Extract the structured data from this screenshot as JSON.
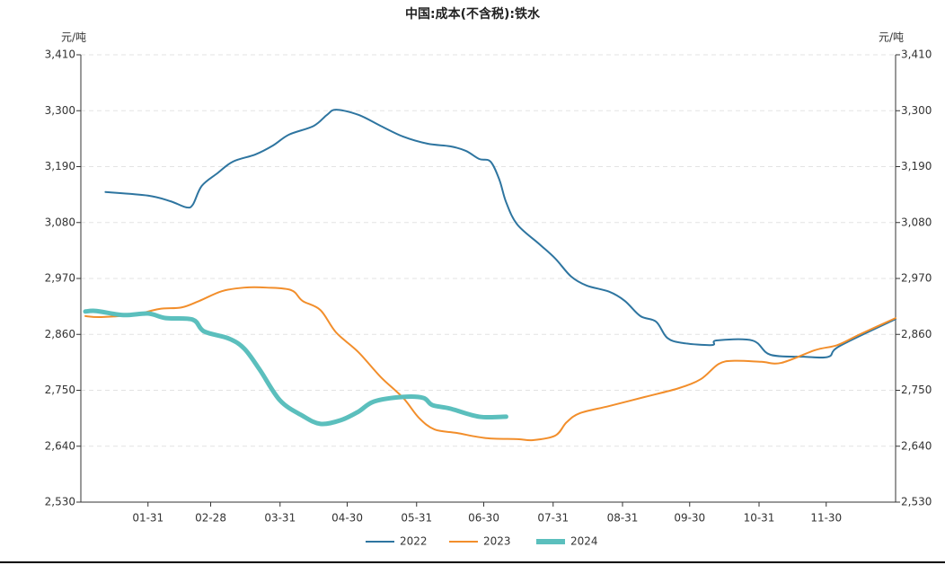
{
  "chart_data": {
    "type": "line",
    "title": "中国:成本(不含税):铁水",
    "y_label": "元/吨",
    "y2_label": "元/吨",
    "xlim": [
      "01-01",
      "12-31"
    ],
    "xticks": [
      "01-31",
      "02-28",
      "03-31",
      "04-30",
      "05-31",
      "06-30",
      "07-31",
      "08-31",
      "09-30",
      "10-31",
      "11-30"
    ],
    "ylim": [
      2530,
      3410
    ],
    "y2lim": [
      2530,
      3410
    ],
    "yticks": [
      {
        "value": 2530,
        "label": "2,530"
      },
      {
        "value": 2640,
        "label": "2,640"
      },
      {
        "value": 2750,
        "label": "2,750"
      },
      {
        "value": 2860,
        "label": "2,860"
      },
      {
        "value": 2970,
        "label": "2,970"
      },
      {
        "value": 3080,
        "label": "3,080"
      },
      {
        "value": 3190,
        "label": "3,190"
      },
      {
        "value": 3300,
        "label": "3,300"
      },
      {
        "value": 3410,
        "label": "3,410"
      }
    ],
    "y2ticks": [
      {
        "value": 2530,
        "label": "2,530"
      },
      {
        "value": 2640,
        "label": "2,640"
      },
      {
        "value": 2750,
        "label": "2,750"
      },
      {
        "value": 2860,
        "label": "2,860"
      },
      {
        "value": 2970,
        "label": "2,970"
      },
      {
        "value": 3080,
        "label": "3,080"
      },
      {
        "value": 3190,
        "label": "3,190"
      },
      {
        "value": 3300,
        "label": "3,300"
      },
      {
        "value": 3410,
        "label": "3,410"
      }
    ],
    "grid": true,
    "legend": "bottom",
    "series": [
      {
        "name": "2022",
        "color": "#2e75a0",
        "x": [
          "01-12",
          "01-31",
          "02-10",
          "02-17",
          "02-20",
          "02-24",
          "03-03",
          "03-10",
          "03-20",
          "03-28",
          "04-04",
          "04-15",
          "04-21",
          "04-25",
          "05-05",
          "05-15",
          "05-25",
          "06-05",
          "06-15",
          "06-22",
          "06-28",
          "07-03",
          "07-07",
          "07-10",
          "07-15",
          "07-25",
          "08-01",
          "08-08",
          "08-15",
          "08-25",
          "09-01",
          "09-08",
          "09-15",
          "09-20",
          "09-27",
          "10-10",
          "10-12",
          "10-28",
          "11-05",
          "11-20",
          "12-01",
          "12-06",
          "12-31"
        ],
        "values": [
          3140,
          3133,
          3122,
          3110,
          3115,
          3152,
          3177,
          3200,
          3214,
          3232,
          3253,
          3270,
          3292,
          3302,
          3292,
          3270,
          3249,
          3235,
          3230,
          3221,
          3205,
          3200,
          3164,
          3120,
          3076,
          3037,
          3009,
          2974,
          2956,
          2944,
          2926,
          2896,
          2885,
          2853,
          2843,
          2839,
          2848,
          2848,
          2820,
          2816,
          2816,
          2837,
          2890
        ]
      },
      {
        "name": "2023",
        "color": "#f28e2b",
        "x": [
          "01-03",
          "01-10",
          "01-25",
          "02-05",
          "02-15",
          "02-23",
          "03-05",
          "03-15",
          "03-25",
          "04-05",
          "04-10",
          "04-18",
          "04-25",
          "05-05",
          "05-15",
          "05-25",
          "06-01",
          "06-08",
          "06-18",
          "07-01",
          "07-15",
          "07-22",
          "08-01",
          "08-06",
          "08-12",
          "08-25",
          "09-10",
          "09-25",
          "10-05",
          "10-13",
          "10-20",
          "11-01",
          "11-10",
          "11-25",
          "12-05",
          "12-15",
          "12-31"
        ],
        "values": [
          2896,
          2894,
          2899,
          2910,
          2913,
          2926,
          2945,
          2952,
          2952,
          2947,
          2926,
          2908,
          2864,
          2825,
          2776,
          2735,
          2696,
          2673,
          2666,
          2656,
          2654,
          2652,
          2661,
          2687,
          2705,
          2719,
          2737,
          2754,
          2772,
          2802,
          2808,
          2806,
          2804,
          2829,
          2839,
          2860,
          2892
        ]
      },
      {
        "name": "2024",
        "color": "#5bbfbd",
        "x": [
          "01-03",
          "01-08",
          "01-20",
          "01-31",
          "02-08",
          "02-20",
          "02-25",
          "03-08",
          "03-15",
          "03-22",
          "03-31",
          "04-10",
          "04-18",
          "04-27",
          "05-05",
          "05-12",
          "05-25",
          "06-03",
          "06-07",
          "06-15",
          "06-28",
          "07-10"
        ],
        "values": [
          2905,
          2906,
          2898,
          2901,
          2892,
          2889,
          2866,
          2852,
          2832,
          2790,
          2730,
          2700,
          2684,
          2691,
          2708,
          2728,
          2737,
          2735,
          2721,
          2714,
          2698,
          2698
        ]
      }
    ]
  }
}
